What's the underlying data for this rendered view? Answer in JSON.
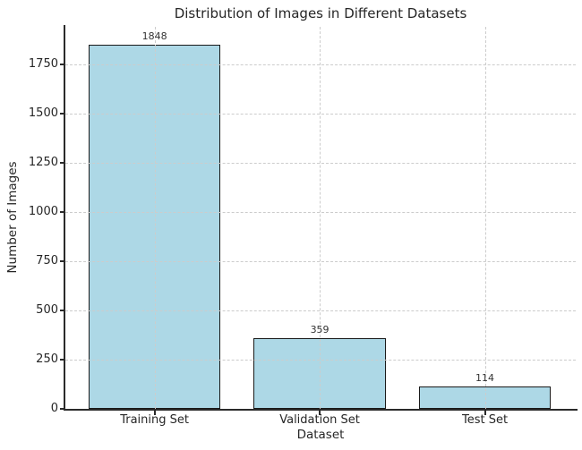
{
  "chart_data": {
    "type": "bar",
    "title": "Distribution of Images in Different Datasets",
    "xlabel": "Dataset",
    "ylabel": "Number of Images",
    "categories": [
      "Training Set",
      "Validation Set",
      "Test Set"
    ],
    "values": [
      1848,
      359,
      114
    ],
    "bar_value_labels": [
      "1848",
      "359",
      "114"
    ],
    "yticks": [
      0,
      250,
      500,
      750,
      1000,
      1250,
      1500,
      1750
    ],
    "ylim": [
      0,
      1940
    ],
    "bar_width_fraction": 0.8,
    "grid": "dashed gridlines on both axes, drawn above bars",
    "legend_position": "none",
    "colors": {
      "bar_fill": "#ADD8E6",
      "bar_edge": "#1a1a1a",
      "gridline": "#cccccc",
      "spine": "#2a2a2a",
      "text": "#262626",
      "background": "#ffffff"
    }
  }
}
